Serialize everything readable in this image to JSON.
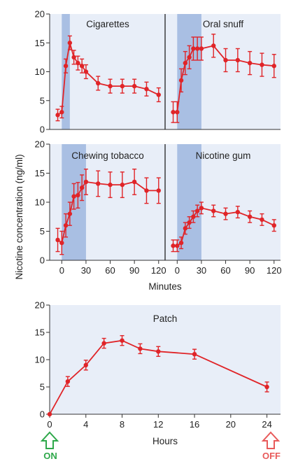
{
  "chart_data": [
    {
      "type": "line",
      "title": "Cigarettes",
      "x_unit": "Minutes",
      "xlim": [
        -15,
        128
      ],
      "ylim": [
        0,
        20
      ],
      "yticks": [
        0,
        5,
        10,
        15,
        20
      ],
      "exposure_window": [
        0,
        10
      ],
      "x": [
        -5,
        0,
        5,
        10,
        15,
        20,
        25,
        30,
        45,
        60,
        75,
        90,
        105,
        120
      ],
      "values": [
        2.5,
        3,
        11,
        15,
        12.5,
        11.5,
        11,
        10,
        8,
        7.5,
        7.5,
        7.5,
        7,
        6
      ],
      "errors": [
        1,
        1,
        1.2,
        1.2,
        1.2,
        1.2,
        1.2,
        1.2,
        1.2,
        1.2,
        1.2,
        1.2,
        1.2,
        1.2
      ]
    },
    {
      "type": "line",
      "title": "Oral snuff",
      "x_unit": "Minutes",
      "xlim": [
        -15,
        128
      ],
      "ylim": [
        0,
        20
      ],
      "exposure_window": [
        0,
        30
      ],
      "x": [
        -5,
        0,
        5,
        10,
        15,
        20,
        25,
        30,
        45,
        60,
        75,
        90,
        105,
        120
      ],
      "values": [
        3,
        3,
        8.5,
        11.5,
        12.5,
        14,
        14,
        14,
        14.5,
        12,
        12,
        11.5,
        11.2,
        11
      ],
      "errors": [
        1.8,
        1.8,
        2,
        2,
        2,
        2,
        2,
        2,
        2,
        2,
        2,
        2,
        2,
        2
      ]
    },
    {
      "type": "line",
      "title": "Chewing tobacco",
      "x_unit": "Minutes",
      "xlim": [
        -15,
        128
      ],
      "ylim": [
        0,
        20
      ],
      "yticks": [
        0,
        5,
        10,
        15,
        20
      ],
      "xticks": [
        0,
        30,
        60,
        90,
        120
      ],
      "exposure_window": [
        0,
        30
      ],
      "x": [
        -5,
        0,
        5,
        10,
        15,
        20,
        25,
        30,
        45,
        60,
        75,
        90,
        105,
        120
      ],
      "values": [
        3.5,
        3,
        6,
        8,
        11,
        11.2,
        12.5,
        13.5,
        13.2,
        13,
        13,
        13.5,
        12,
        12
      ],
      "errors": [
        2,
        2,
        2,
        2,
        2.2,
        2.2,
        2.2,
        2.2,
        2.2,
        2.2,
        2.2,
        2.2,
        2.2,
        2.2
      ]
    },
    {
      "type": "line",
      "title": "Nicotine gum",
      "x_unit": "Minutes",
      "xlim": [
        -15,
        128
      ],
      "ylim": [
        0,
        20
      ],
      "xticks": [
        0,
        30,
        60,
        90,
        120
      ],
      "exposure_window": [
        0,
        30
      ],
      "x": [
        -5,
        0,
        5,
        10,
        15,
        20,
        25,
        30,
        45,
        60,
        75,
        90,
        105,
        120
      ],
      "values": [
        2.5,
        2.5,
        3,
        5.5,
        6.5,
        7.5,
        8.5,
        9,
        8.5,
        8,
        8.3,
        7.5,
        7,
        6
      ],
      "errors": [
        1,
        1,
        1,
        1,
        1,
        1,
        1,
        1,
        1,
        1,
        1,
        1,
        1,
        1
      ]
    },
    {
      "type": "line",
      "title": "Patch",
      "x_unit": "Hours",
      "xlim": [
        0,
        25.5
      ],
      "ylim": [
        0,
        20
      ],
      "yticks": [
        0,
        5,
        10,
        15,
        20
      ],
      "xticks": [
        0,
        4,
        8,
        12,
        16,
        20,
        24
      ],
      "x": [
        0,
        2,
        4,
        6,
        8,
        10,
        12,
        16,
        24
      ],
      "values": [
        0,
        6,
        9,
        13,
        13.5,
        12,
        11.5,
        11,
        5
      ],
      "errors": [
        0,
        0.9,
        0.9,
        0.9,
        0.9,
        0.9,
        0.9,
        0.9,
        0.9
      ]
    }
  ],
  "labels": {
    "ylabel": "Nicotine concentration (ng/ml)",
    "xlabel_top": "Minutes",
    "xlabel_patch": "Hours",
    "on": "ON",
    "off": "OFF"
  },
  "colors": {
    "panel_bg": "#e8eef8",
    "exposure_band": "#a9bfe3",
    "series": "#e02428",
    "on": "#2ea84a",
    "off": "#e85a5a"
  }
}
